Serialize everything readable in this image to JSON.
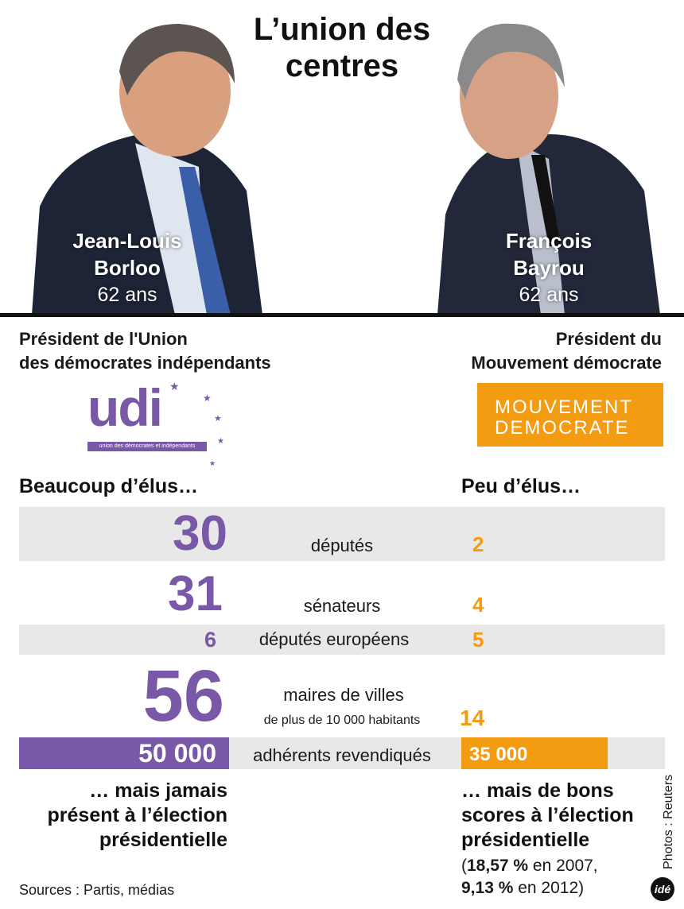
{
  "title": "L’union des centres",
  "left": {
    "first_name": "Jean-Louis",
    "last_name": "Borloo",
    "age": "62 ans",
    "role_line1": "Président de l'Union",
    "role_line2": "des démocrates indépendants",
    "logo_text": "udi",
    "logo_subtext": "union des démocrates et indépendants",
    "heading": "Beaucoup d’élus…",
    "footer_line1": "… mais jamais",
    "footer_line2": "présent à l’élection",
    "footer_line3": "présidentielle"
  },
  "right": {
    "first_name": "François",
    "last_name": "Bayrou",
    "age": "62 ans",
    "role_line1": "Président du",
    "role_line2": "Mouvement démocrate",
    "logo_line1": "MOUVEMENT",
    "logo_line2": "DEMOCRATE",
    "heading": "Peu d’élus…",
    "footer_line1": "… mais de bons",
    "footer_line2": "scores à l’élection",
    "footer_line3": "présidentielle",
    "score1_value": "18,57 %",
    "score1_text": " en 2007,",
    "score2_value": "9,13 %",
    "score2_text": " en 2012)",
    "open_paren": "("
  },
  "stats": [
    {
      "label": "députés",
      "udi": "30",
      "modem": "2"
    },
    {
      "label": "sénateurs",
      "udi": "31",
      "modem": "4"
    },
    {
      "label": "députés européens",
      "udi": "6",
      "modem": "5"
    },
    {
      "label": "maires de villes",
      "label2": "de plus de 10 000 habitants",
      "udi": "56",
      "modem": "14"
    },
    {
      "label": "adhérents revendiqués",
      "udi": "50 000",
      "modem": "35 000"
    }
  ],
  "members": {
    "udi_value": 50000,
    "modem_value": 35000
  },
  "sources": "Sources : Partis, médias",
  "credit": "Photos : Reuters",
  "brand": "idé",
  "colors": {
    "udi_purple": "#7a58a8",
    "modem_orange": "#f39c12",
    "band_grey": "#e8e8e8"
  }
}
